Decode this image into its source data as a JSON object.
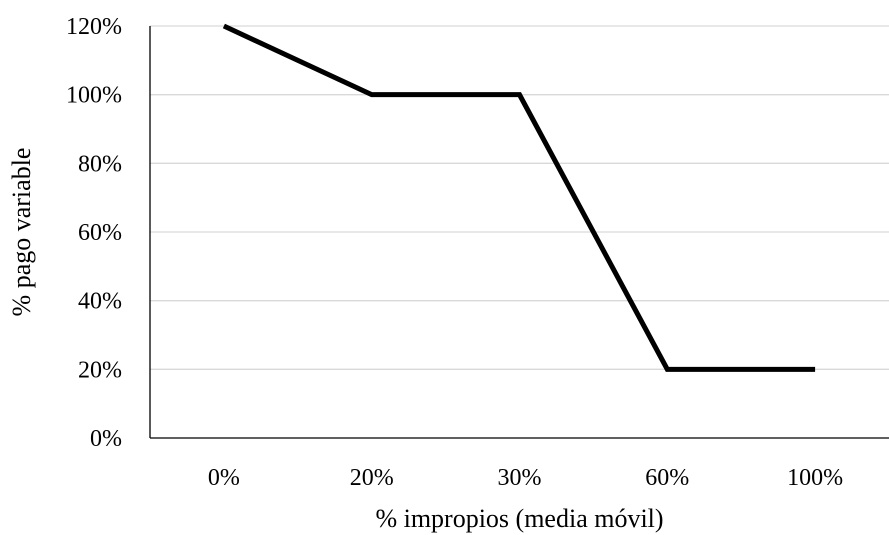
{
  "chart_data": {
    "type": "line",
    "categories": [
      "0%",
      "20%",
      "30%",
      "60%",
      "100%"
    ],
    "series": [
      {
        "values": [
          120,
          100,
          100,
          20,
          20
        ],
        "color": "#000000"
      }
    ],
    "xlabel": "% impropios (media móvil)",
    "ylabel": "% pago variable",
    "ylim": [
      0,
      120
    ],
    "yticks": [
      "0%",
      "20%",
      "40%",
      "60%",
      "80%",
      "100%",
      "120%"
    ],
    "grid": true,
    "legend": "none"
  }
}
